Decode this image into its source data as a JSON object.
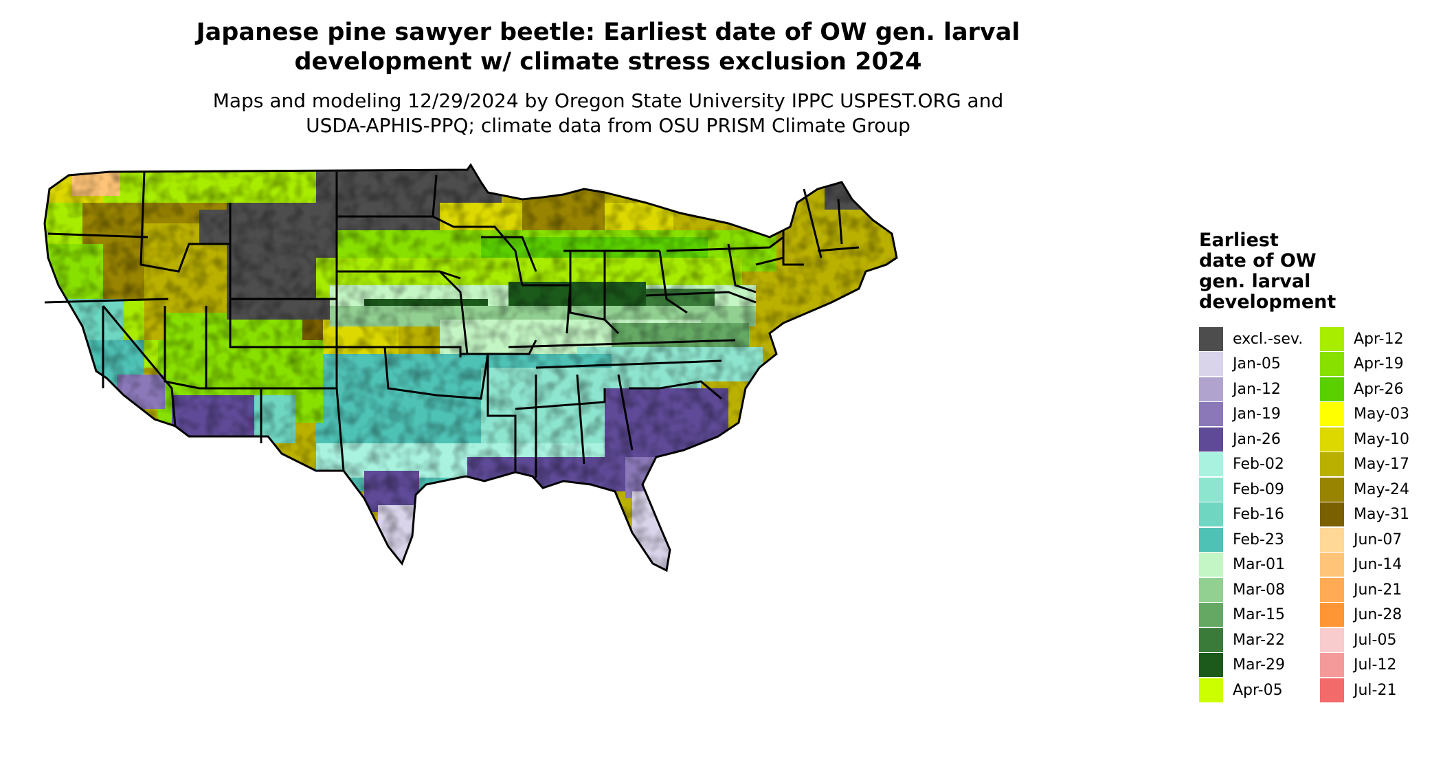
{
  "title_lines": [
    "Japanese pine sawyer beetle: Earliest date of OW gen. larval",
    "development w/ climate stress exclusion 2024"
  ],
  "subtitle_lines": [
    "Maps and modeling 12/29/2024 by Oregon State University IPPC USPEST.ORG and",
    "USDA-APHIS-PPQ; climate data from OSU PRISM Climate Group"
  ],
  "legend": {
    "title_lines": [
      "Earliest",
      "date of OW",
      "gen. larval",
      "development"
    ],
    "columns": [
      [
        {
          "label": "excl.-sev.",
          "color": "#4d4d4d"
        },
        {
          "label": "Jan-05",
          "color": "#dad4ea"
        },
        {
          "label": "Jan-12",
          "color": "#b0a4cf"
        },
        {
          "label": "Jan-19",
          "color": "#8a78b8"
        },
        {
          "label": "Jan-26",
          "color": "#5e4a96"
        },
        {
          "label": "Feb-02",
          "color": "#a8f2df"
        },
        {
          "label": "Feb-09",
          "color": "#8ee5cf"
        },
        {
          "label": "Feb-16",
          "color": "#6fd6c2"
        },
        {
          "label": "Feb-23",
          "color": "#4fc2b6"
        },
        {
          "label": "Mar-01",
          "color": "#c4f5c4"
        },
        {
          "label": "Mar-08",
          "color": "#92d092"
        },
        {
          "label": "Mar-15",
          "color": "#64a864"
        },
        {
          "label": "Mar-22",
          "color": "#3a7b3a"
        },
        {
          "label": "Mar-29",
          "color": "#1c5a1c"
        },
        {
          "label": "Apr-05",
          "color": "#ccff00"
        }
      ],
      [
        {
          "label": "Apr-12",
          "color": "#a8ec00"
        },
        {
          "label": "Apr-19",
          "color": "#88e000"
        },
        {
          "label": "Apr-26",
          "color": "#5ad000"
        },
        {
          "label": "May-03",
          "color": "#ffff00"
        },
        {
          "label": "May-10",
          "color": "#dcd800"
        },
        {
          "label": "May-17",
          "color": "#bab000"
        },
        {
          "label": "May-24",
          "color": "#988400"
        },
        {
          "label": "May-31",
          "color": "#7a6000"
        },
        {
          "label": "Jun-07",
          "color": "#ffd796"
        },
        {
          "label": "Jun-14",
          "color": "#ffc478"
        },
        {
          "label": "Jun-21",
          "color": "#ffab55"
        },
        {
          "label": "Jun-28",
          "color": "#ff9636"
        },
        {
          "label": "Jul-05",
          "color": "#f8cccc"
        },
        {
          "label": "Jul-12",
          "color": "#f59a9a"
        },
        {
          "label": "Jul-21",
          "color": "#f26a6a"
        }
      ]
    ]
  }
}
